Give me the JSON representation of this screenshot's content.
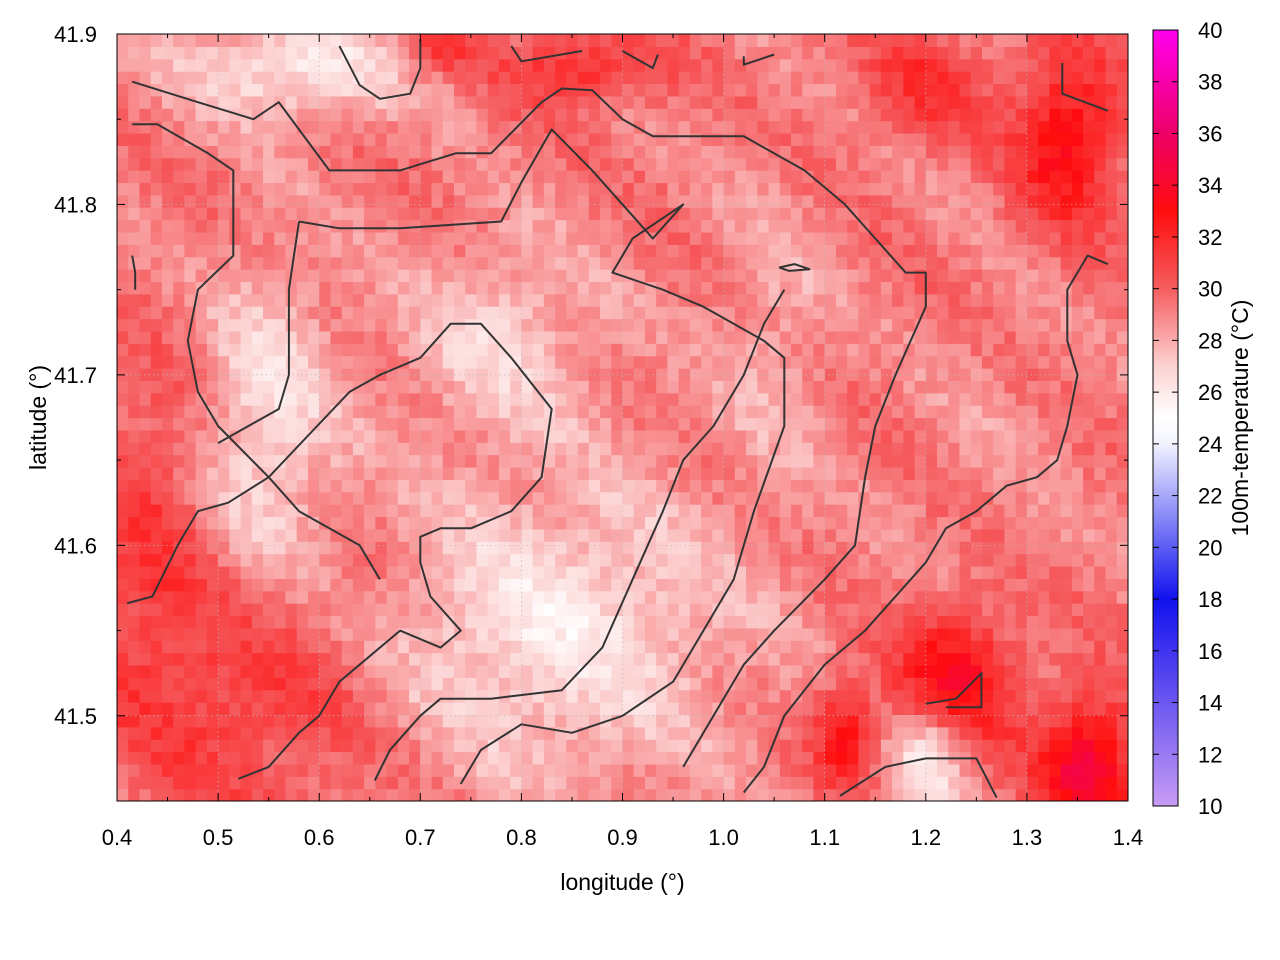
{
  "chart_data": {
    "type": "heatmap",
    "title": "",
    "xlabel": "longitude (°)",
    "ylabel": "latitude (°)",
    "colorbar_label": "100m-temperature (°C)",
    "xlim": [
      0.4,
      1.4
    ],
    "ylim": [
      41.45,
      41.9
    ],
    "x_ticks": [
      "0.4",
      "0.5",
      "0.6",
      "0.7",
      "0.8",
      "0.9",
      "1.0",
      "1.1",
      "1.2",
      "1.3",
      "1.4"
    ],
    "y_ticks": [
      "41.5",
      "41.6",
      "41.7",
      "41.8",
      "41.9"
    ],
    "colorbar_range": [
      10,
      40
    ],
    "colorbar_ticks": [
      "10",
      "12",
      "14",
      "16",
      "18",
      "20",
      "22",
      "24",
      "26",
      "28",
      "30",
      "32",
      "34",
      "36",
      "38",
      "40"
    ],
    "colormap": [
      {
        "v": 10,
        "color": "#c79cf4"
      },
      {
        "v": 18,
        "color": "#1111ee"
      },
      {
        "v": 24,
        "color": "#f2f2ff"
      },
      {
        "v": 25,
        "color": "#ffffff"
      },
      {
        "v": 27,
        "color": "#fcd2d2"
      },
      {
        "v": 30,
        "color": "#f55d60"
      },
      {
        "v": 33,
        "color": "#ff0d0d"
      },
      {
        "v": 36,
        "color": "#ee0066"
      },
      {
        "v": 40,
        "color": "#ff00ee"
      }
    ],
    "grid": true,
    "field_blobs": [
      {
        "x": 0.53,
        "y": 41.53,
        "rx": 0.15,
        "ry": 0.08,
        "t": 32.0
      },
      {
        "x": 0.45,
        "y": 41.6,
        "rx": 0.06,
        "ry": 0.1,
        "t": 31.5
      },
      {
        "x": 0.58,
        "y": 41.88,
        "rx": 0.12,
        "ry": 0.03,
        "t": 26.0
      },
      {
        "x": 0.55,
        "y": 41.67,
        "rx": 0.07,
        "ry": 0.1,
        "t": 26.5
      },
      {
        "x": 0.83,
        "y": 41.55,
        "rx": 0.18,
        "ry": 0.09,
        "t": 26.2
      },
      {
        "x": 0.78,
        "y": 41.72,
        "rx": 0.1,
        "ry": 0.06,
        "t": 27.0
      },
      {
        "x": 0.86,
        "y": 41.88,
        "rx": 0.08,
        "ry": 0.02,
        "t": 32.0
      },
      {
        "x": 0.72,
        "y": 41.89,
        "rx": 0.04,
        "ry": 0.015,
        "t": 31.0
      },
      {
        "x": 1.2,
        "y": 41.87,
        "rx": 0.06,
        "ry": 0.03,
        "t": 31.5
      },
      {
        "x": 1.34,
        "y": 41.84,
        "rx": 0.05,
        "ry": 0.05,
        "t": 33.5
      },
      {
        "x": 1.05,
        "y": 41.72,
        "rx": 0.06,
        "ry": 0.1,
        "t": 28.0
      },
      {
        "x": 1.27,
        "y": 41.67,
        "rx": 0.08,
        "ry": 0.07,
        "t": 28.8
      },
      {
        "x": 1.23,
        "y": 41.52,
        "rx": 0.06,
        "ry": 0.04,
        "t": 33.5
      },
      {
        "x": 1.12,
        "y": 41.49,
        "rx": 0.03,
        "ry": 0.03,
        "t": 33.0
      },
      {
        "x": 1.2,
        "y": 41.47,
        "rx": 0.04,
        "ry": 0.03,
        "t": 26.5
      },
      {
        "x": 1.36,
        "y": 41.47,
        "rx": 0.05,
        "ry": 0.04,
        "t": 34.5
      }
    ],
    "contours": [
      [
        [
          0.415,
          41.872
        ],
        [
          0.48,
          41.86
        ],
        [
          0.535,
          41.85
        ],
        [
          0.56,
          41.86
        ],
        [
          0.61,
          41.82
        ],
        [
          0.68,
          41.82
        ],
        [
          0.735,
          41.83
        ],
        [
          0.77,
          41.83
        ],
        [
          0.82,
          41.86
        ],
        [
          0.84,
          41.868
        ],
        [
          0.87,
          41.867
        ],
        [
          0.9,
          41.85
        ],
        [
          0.93,
          41.84
        ],
        [
          1.02,
          41.84
        ],
        [
          1.08,
          41.82
        ],
        [
          1.12,
          41.8
        ],
        [
          1.15,
          41.78
        ],
        [
          1.18,
          41.76
        ],
        [
          1.2,
          41.76
        ],
        [
          1.2,
          41.74
        ],
        [
          1.17,
          41.7
        ],
        [
          1.15,
          41.67
        ],
        [
          1.14,
          41.64
        ],
        [
          1.13,
          41.6
        ],
        [
          1.1,
          41.58
        ],
        [
          1.05,
          41.55
        ],
        [
          1.02,
          41.53
        ],
        [
          0.99,
          41.5
        ],
        [
          0.96,
          41.47
        ]
      ],
      [
        [
          0.415,
          41.847
        ],
        [
          0.44,
          41.847
        ],
        [
          0.49,
          41.83
        ],
        [
          0.515,
          41.82
        ],
        [
          0.515,
          41.77
        ],
        [
          0.48,
          41.75
        ],
        [
          0.47,
          41.72
        ],
        [
          0.48,
          41.69
        ],
        [
          0.5,
          41.67
        ],
        [
          0.55,
          41.64
        ],
        [
          0.58,
          41.62
        ],
        [
          0.61,
          41.61
        ],
        [
          0.64,
          41.6
        ],
        [
          0.66,
          41.58
        ]
      ],
      [
        [
          0.58,
          41.79
        ],
        [
          0.62,
          41.786
        ],
        [
          0.68,
          41.786
        ],
        [
          0.78,
          41.79
        ],
        [
          0.8,
          41.813
        ],
        [
          0.83,
          41.844
        ],
        [
          0.87,
          41.82
        ],
        [
          0.93,
          41.78
        ],
        [
          0.96,
          41.8
        ],
        [
          0.91,
          41.78
        ],
        [
          0.89,
          41.76
        ],
        [
          0.94,
          41.75
        ],
        [
          0.98,
          41.74
        ],
        [
          1.04,
          41.72
        ],
        [
          1.06,
          41.71
        ],
        [
          1.06,
          41.67
        ],
        [
          1.03,
          41.62
        ],
        [
          1.01,
          41.58
        ],
        [
          0.98,
          41.55
        ],
        [
          0.95,
          41.52
        ],
        [
          0.9,
          41.5
        ],
        [
          0.85,
          41.49
        ],
        [
          0.8,
          41.495
        ],
        [
          0.76,
          41.48
        ],
        [
          0.74,
          41.46
        ]
      ],
      [
        [
          0.5,
          41.66
        ],
        [
          0.53,
          41.67
        ],
        [
          0.56,
          41.68
        ],
        [
          0.57,
          41.7
        ],
        [
          0.57,
          41.75
        ],
        [
          0.58,
          41.79
        ]
      ],
      [
        [
          0.41,
          41.566
        ],
        [
          0.435,
          41.57
        ],
        [
          0.46,
          41.6
        ],
        [
          0.48,
          41.62
        ],
        [
          0.51,
          41.625
        ],
        [
          0.55,
          41.64
        ],
        [
          0.59,
          41.665
        ],
        [
          0.63,
          41.69
        ],
        [
          0.66,
          41.7
        ],
        [
          0.7,
          41.71
        ],
        [
          0.73,
          41.73
        ],
        [
          0.76,
          41.73
        ],
        [
          0.79,
          41.71
        ],
        [
          0.83,
          41.68
        ],
        [
          0.82,
          41.64
        ],
        [
          0.79,
          41.62
        ],
        [
          0.75,
          41.61
        ],
        [
          0.72,
          41.61
        ],
        [
          0.7,
          41.605
        ],
        [
          0.7,
          41.59
        ],
        [
          0.71,
          41.57
        ],
        [
          0.74,
          41.55
        ],
        [
          0.72,
          41.54
        ],
        [
          0.68,
          41.55
        ],
        [
          0.62,
          41.52
        ],
        [
          0.6,
          41.5
        ],
        [
          0.58,
          41.49
        ],
        [
          0.55,
          41.47
        ],
        [
          0.52,
          41.463
        ]
      ],
      [
        [
          0.655,
          41.462
        ],
        [
          0.67,
          41.48
        ],
        [
          0.7,
          41.5
        ],
        [
          0.72,
          41.51
        ],
        [
          0.77,
          41.51
        ],
        [
          0.84,
          41.515
        ],
        [
          0.88,
          41.54
        ],
        [
          0.91,
          41.58
        ],
        [
          0.94,
          41.62
        ],
        [
          0.96,
          41.65
        ],
        [
          0.99,
          41.67
        ],
        [
          1.02,
          41.7
        ],
        [
          1.04,
          41.73
        ],
        [
          1.06,
          41.75
        ]
      ],
      [
        [
          1.02,
          41.455
        ],
        [
          1.04,
          41.47
        ],
        [
          1.06,
          41.5
        ],
        [
          1.1,
          41.53
        ],
        [
          1.14,
          41.55
        ],
        [
          1.17,
          41.57
        ],
        [
          1.2,
          41.59
        ],
        [
          1.22,
          41.61
        ],
        [
          1.25,
          41.62
        ],
        [
          1.28,
          41.635
        ],
        [
          1.31,
          41.64
        ],
        [
          1.33,
          41.65
        ],
        [
          1.34,
          41.67
        ],
        [
          1.35,
          41.7
        ],
        [
          1.34,
          41.72
        ],
        [
          1.34,
          41.75
        ],
        [
          1.36,
          41.77
        ],
        [
          1.38,
          41.765
        ]
      ],
      [
        [
          1.115,
          41.453
        ],
        [
          1.16,
          41.47
        ],
        [
          1.2,
          41.475
        ],
        [
          1.25,
          41.475
        ],
        [
          1.27,
          41.452
        ]
      ],
      [
        [
          1.2,
          41.507
        ],
        [
          1.23,
          41.51
        ],
        [
          1.255,
          41.525
        ],
        [
          1.255,
          41.505
        ],
        [
          1.22,
          41.505
        ]
      ],
      [
        [
          1.055,
          41.763
        ],
        [
          1.07,
          41.765
        ],
        [
          1.085,
          41.762
        ],
        [
          1.065,
          41.761
        ],
        [
          1.055,
          41.763
        ]
      ],
      [
        [
          0.415,
          41.77
        ],
        [
          0.418,
          41.76
        ],
        [
          0.418,
          41.75
        ]
      ],
      [
        [
          0.62,
          41.893
        ],
        [
          0.64,
          41.87
        ],
        [
          0.66,
          41.862
        ],
        [
          0.69,
          41.865
        ],
        [
          0.7,
          41.88
        ],
        [
          0.7,
          41.897
        ]
      ],
      [
        [
          0.79,
          41.893
        ],
        [
          0.8,
          41.884
        ],
        [
          0.86,
          41.89
        ]
      ],
      [
        [
          0.9,
          41.89
        ],
        [
          0.93,
          41.88
        ],
        [
          0.935,
          41.888
        ]
      ],
      [
        [
          1.02,
          41.887
        ],
        [
          1.02,
          41.882
        ],
        [
          1.05,
          41.888
        ]
      ],
      [
        [
          1.335,
          41.883
        ],
        [
          1.335,
          41.865
        ],
        [
          1.38,
          41.855
        ]
      ]
    ]
  }
}
